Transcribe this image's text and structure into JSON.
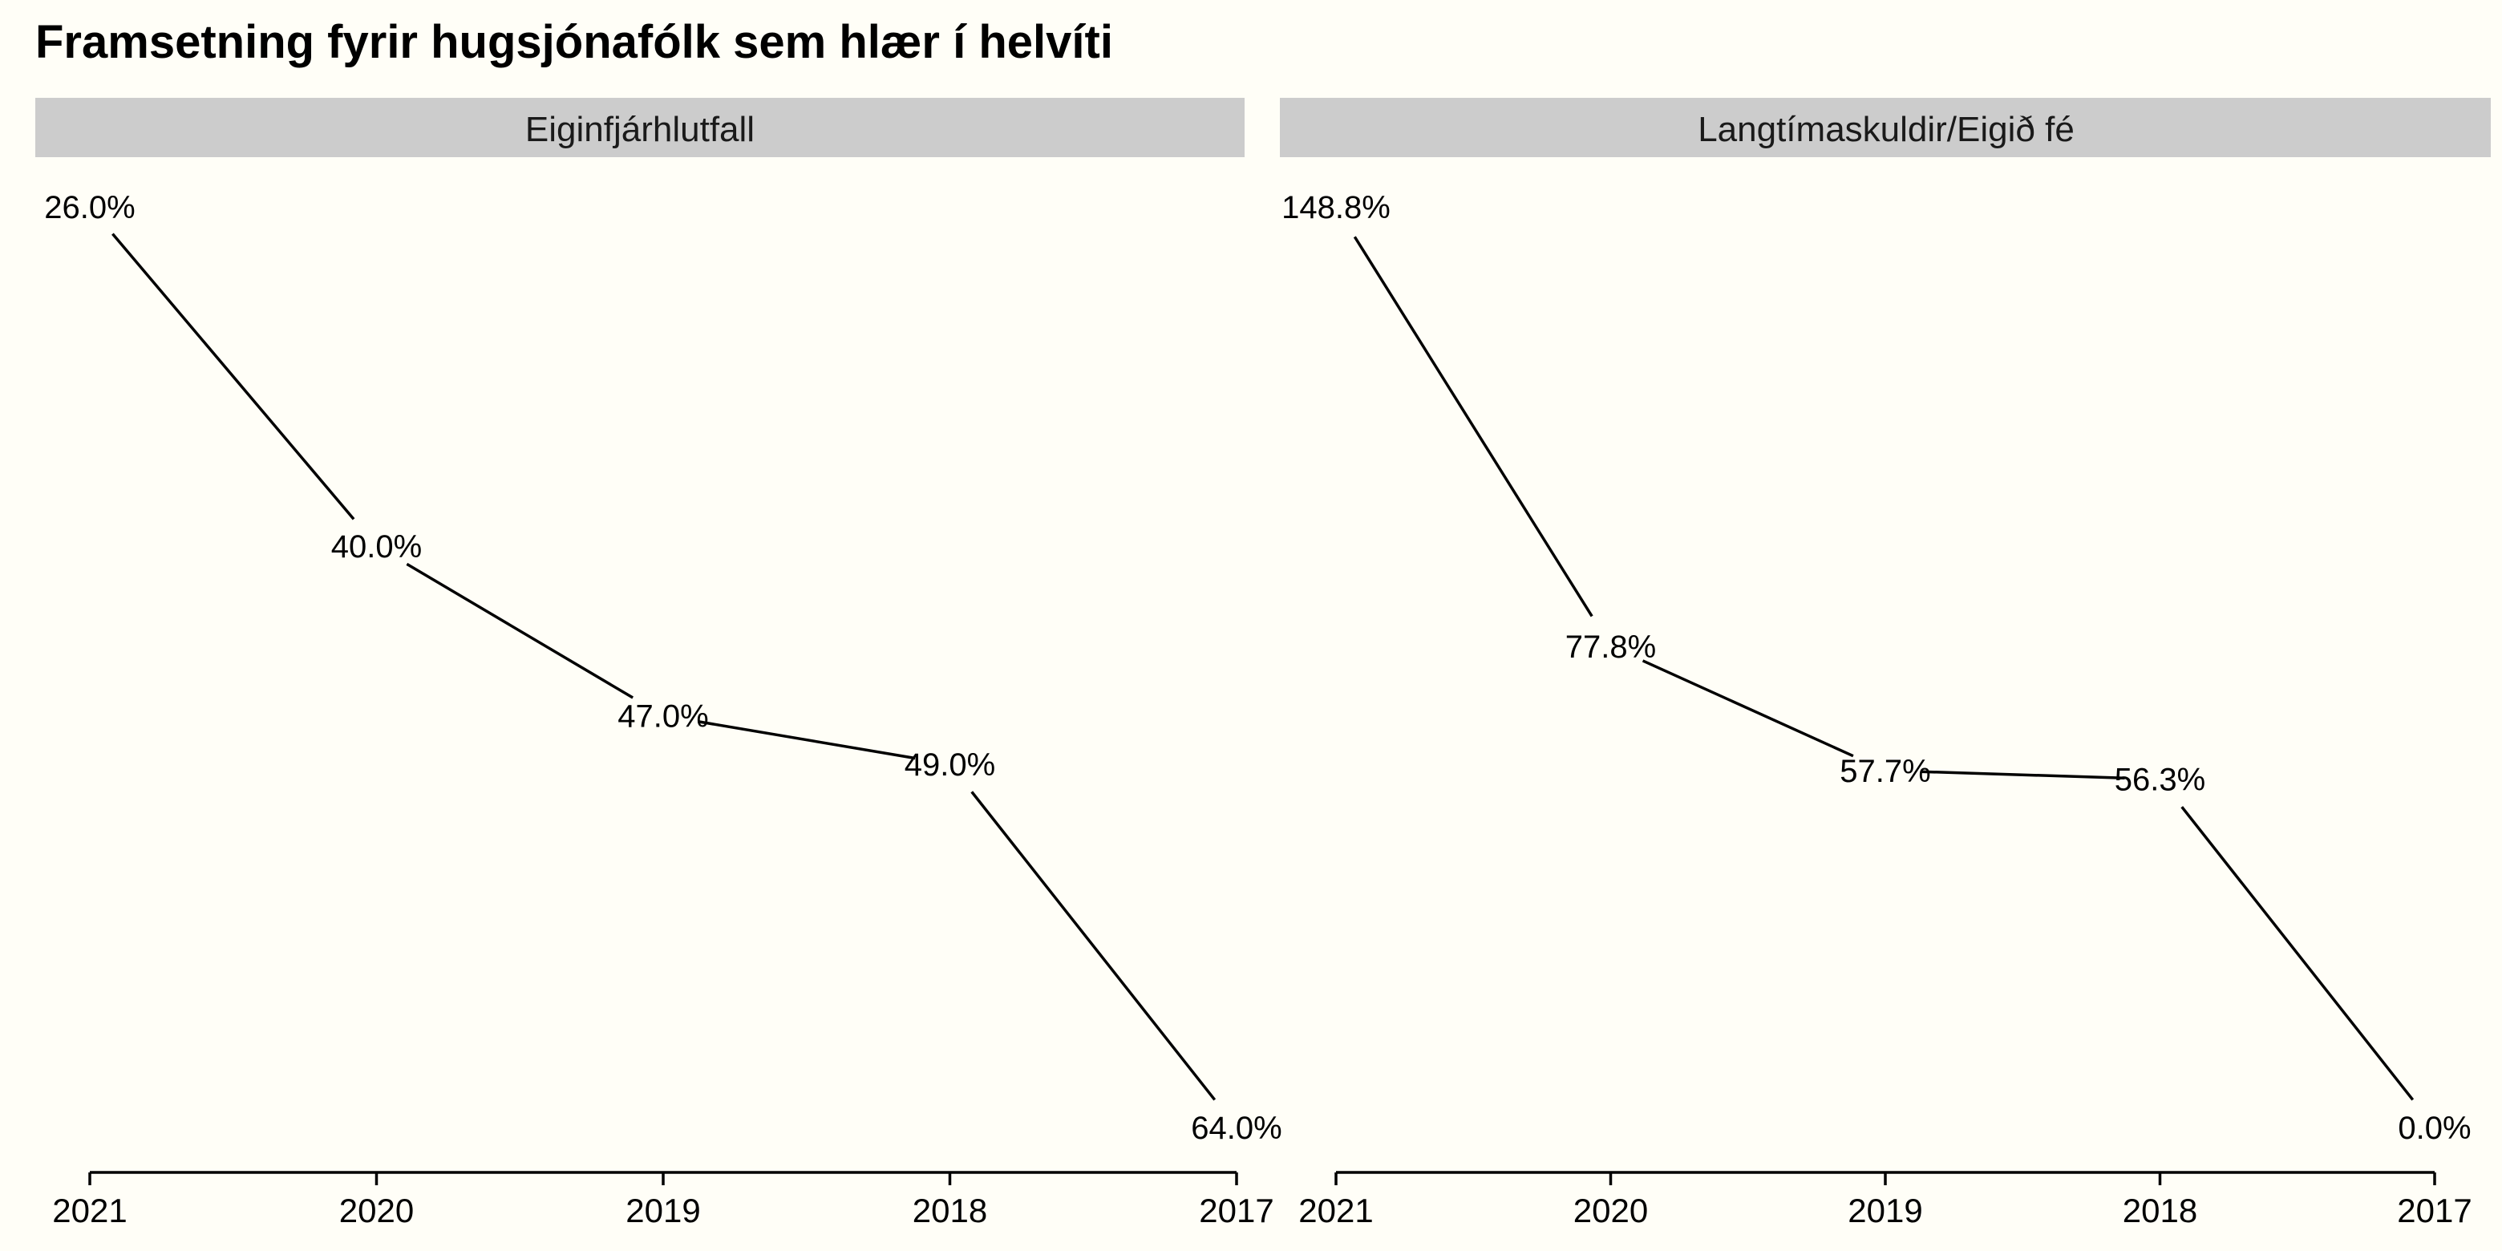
{
  "chart_data": {
    "type": "line",
    "title": "Framsetning fyrir hugsjónafólk sem hlær í helvíti",
    "x": [
      "2021",
      "2020",
      "2019",
      "2018",
      "2017"
    ],
    "panels": [
      {
        "name": "Eiginfjárhlutfall",
        "values": [
          26.0,
          40.0,
          47.0,
          49.0,
          64.0
        ],
        "labels": [
          "26.0%",
          "40.0%",
          "47.0%",
          "49.0%",
          "64.0%"
        ],
        "y_reversed": true
      },
      {
        "name": "Langtímaskuldir/Eigið fé",
        "values": [
          148.8,
          77.8,
          57.7,
          56.3,
          0.0
        ],
        "labels": [
          "148.8%",
          "77.8%",
          "57.7%",
          "56.3%",
          "0.0%"
        ],
        "y_reversed": false
      }
    ],
    "grid": false,
    "legend": "none",
    "colors": {
      "background": "#FFFEF7",
      "strip": "#CCCCCC",
      "line": "#000000"
    }
  }
}
